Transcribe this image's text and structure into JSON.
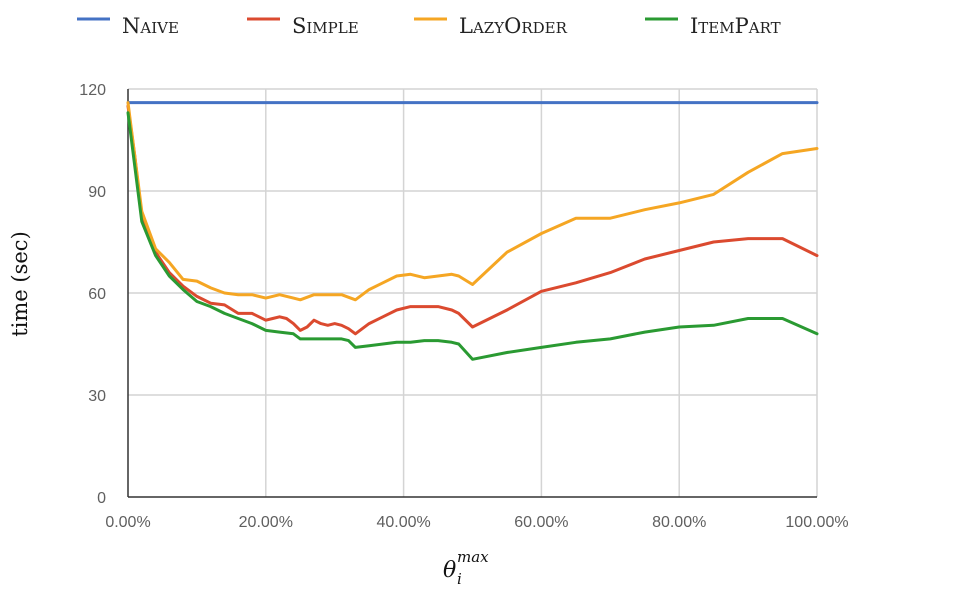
{
  "chart_data": {
    "type": "line",
    "xlabel": "θ",
    "xlabel_superscript": "max",
    "xlabel_subscript": "i",
    "ylabel": "time (sec)",
    "xlim": [
      0,
      100
    ],
    "ylim": [
      0,
      120
    ],
    "x_ticks": [
      "0.00%",
      "20.00%",
      "40.00%",
      "60.00%",
      "80.00%",
      "100.00%"
    ],
    "y_ticks": [
      "0",
      "30",
      "60",
      "90",
      "120"
    ],
    "grid": true,
    "legend_position": "top",
    "series": [
      {
        "name": "Naive",
        "color": "#4472c4",
        "points": [
          [
            0,
            116
          ],
          [
            100,
            116
          ]
        ]
      },
      {
        "name": "Simple",
        "color": "#db4a2f",
        "points": [
          [
            0,
            115
          ],
          [
            1,
            100
          ],
          [
            2,
            82
          ],
          [
            4,
            72
          ],
          [
            6,
            66
          ],
          [
            8,
            62
          ],
          [
            10,
            59
          ],
          [
            12,
            57
          ],
          [
            14,
            56.5
          ],
          [
            16,
            54
          ],
          [
            18,
            54
          ],
          [
            20,
            52
          ],
          [
            21,
            52.5
          ],
          [
            22,
            53
          ],
          [
            23,
            52.5
          ],
          [
            24,
            51
          ],
          [
            25,
            49
          ],
          [
            26,
            50
          ],
          [
            27,
            52
          ],
          [
            28,
            51
          ],
          [
            29,
            50.5
          ],
          [
            30,
            51
          ],
          [
            31,
            50.5
          ],
          [
            32,
            49.5
          ],
          [
            33,
            48
          ],
          [
            35,
            51
          ],
          [
            37,
            53
          ],
          [
            39,
            55
          ],
          [
            41,
            56
          ],
          [
            43,
            56
          ],
          [
            45,
            56
          ],
          [
            47,
            55
          ],
          [
            48,
            54
          ],
          [
            50,
            50
          ],
          [
            55,
            55
          ],
          [
            60,
            60.5
          ],
          [
            65,
            63
          ],
          [
            70,
            66
          ],
          [
            75,
            70
          ],
          [
            80,
            72.5
          ],
          [
            85,
            75
          ],
          [
            90,
            76
          ],
          [
            95,
            76
          ],
          [
            100,
            71
          ]
        ]
      },
      {
        "name": "LazyOrder",
        "color": "#f5a623",
        "points": [
          [
            0,
            116
          ],
          [
            1,
            100
          ],
          [
            2,
            84
          ],
          [
            4,
            73
          ],
          [
            6,
            69
          ],
          [
            8,
            64
          ],
          [
            10,
            63.5
          ],
          [
            12,
            61.5
          ],
          [
            14,
            60
          ],
          [
            16,
            59.5
          ],
          [
            18,
            59.5
          ],
          [
            20,
            58.5
          ],
          [
            22,
            59.5
          ],
          [
            24,
            58.5
          ],
          [
            25,
            58
          ],
          [
            27,
            59.5
          ],
          [
            29,
            59.5
          ],
          [
            31,
            59.5
          ],
          [
            33,
            58
          ],
          [
            35,
            61
          ],
          [
            37,
            63
          ],
          [
            39,
            65
          ],
          [
            41,
            65.5
          ],
          [
            43,
            64.5
          ],
          [
            45,
            65
          ],
          [
            47,
            65.5
          ],
          [
            48,
            65
          ],
          [
            50,
            62.5
          ],
          [
            55,
            72
          ],
          [
            60,
            77.5
          ],
          [
            65,
            82
          ],
          [
            70,
            82
          ],
          [
            75,
            84.5
          ],
          [
            80,
            86.5
          ],
          [
            85,
            89
          ],
          [
            90,
            95.5
          ],
          [
            95,
            101
          ],
          [
            100,
            102.5
          ]
        ]
      },
      {
        "name": "ItemPart",
        "color": "#2a9a32",
        "points": [
          [
            0,
            113
          ],
          [
            1,
            97
          ],
          [
            2,
            81
          ],
          [
            4,
            71
          ],
          [
            6,
            65
          ],
          [
            8,
            61
          ],
          [
            10,
            57.5
          ],
          [
            12,
            56
          ],
          [
            14,
            54
          ],
          [
            16,
            52.5
          ],
          [
            18,
            51
          ],
          [
            20,
            49
          ],
          [
            22,
            48.5
          ],
          [
            24,
            48
          ],
          [
            25,
            46.5
          ],
          [
            27,
            46.5
          ],
          [
            29,
            46.5
          ],
          [
            31,
            46.5
          ],
          [
            32,
            46
          ],
          [
            33,
            44
          ],
          [
            35,
            44.5
          ],
          [
            37,
            45
          ],
          [
            39,
            45.5
          ],
          [
            41,
            45.5
          ],
          [
            43,
            46
          ],
          [
            45,
            46
          ],
          [
            47,
            45.5
          ],
          [
            48,
            45
          ],
          [
            50,
            40.5
          ],
          [
            55,
            42.5
          ],
          [
            60,
            44
          ],
          [
            65,
            45.5
          ],
          [
            70,
            46.5
          ],
          [
            75,
            48.5
          ],
          [
            80,
            50
          ],
          [
            85,
            50.5
          ],
          [
            90,
            52.5
          ],
          [
            95,
            52.5
          ],
          [
            100,
            48
          ]
        ]
      }
    ]
  }
}
